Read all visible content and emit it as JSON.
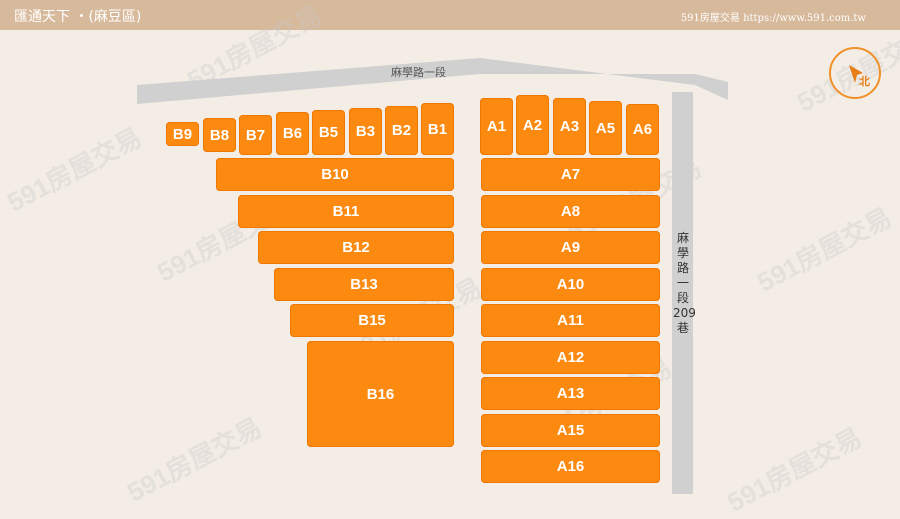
{
  "header": {
    "title": "匯通天下 ・(麻豆區)",
    "site": "591房屋交易 https://www.591.com.tw"
  },
  "map": {
    "roads": {
      "top": "麻學路一段",
      "right": [
        "麻",
        "學",
        "路",
        "一",
        "段",
        "209",
        "巷"
      ]
    },
    "compass_label": "北",
    "watermark": "591房屋交易",
    "lots": {
      "b_top": [
        "B9",
        "B8",
        "B7",
        "B6",
        "B5",
        "B3",
        "B2",
        "B1"
      ],
      "a_top": [
        "A1",
        "A2",
        "A3",
        "A5",
        "A6"
      ],
      "b_rows": [
        "B10",
        "B11",
        "B12",
        "B13",
        "B15",
        "B16"
      ],
      "a_rows": [
        "A7",
        "A8",
        "A9",
        "A10",
        "A11",
        "A12",
        "A13",
        "A15",
        "A16"
      ]
    }
  }
}
